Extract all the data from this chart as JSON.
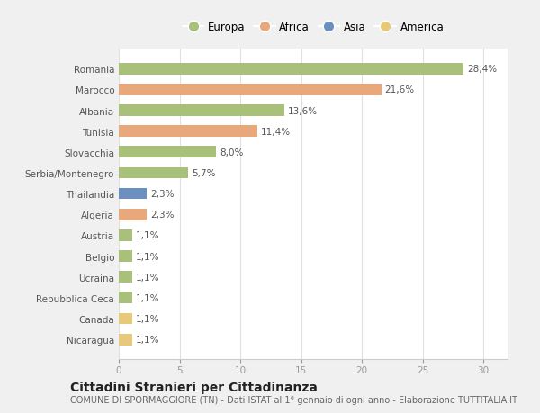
{
  "categories": [
    "Romania",
    "Marocco",
    "Albania",
    "Tunisia",
    "Slovacchia",
    "Serbia/Montenegro",
    "Thailandia",
    "Algeria",
    "Austria",
    "Belgio",
    "Ucraina",
    "Repubblica Ceca",
    "Canada",
    "Nicaragua"
  ],
  "values": [
    28.4,
    21.6,
    13.6,
    11.4,
    8.0,
    5.7,
    2.3,
    2.3,
    1.1,
    1.1,
    1.1,
    1.1,
    1.1,
    1.1
  ],
  "labels": [
    "28,4%",
    "21,6%",
    "13,6%",
    "11,4%",
    "8,0%",
    "5,7%",
    "2,3%",
    "2,3%",
    "1,1%",
    "1,1%",
    "1,1%",
    "1,1%",
    "1,1%",
    "1,1%"
  ],
  "continents": [
    "Europa",
    "Africa",
    "Europa",
    "Africa",
    "Europa",
    "Europa",
    "Asia",
    "Africa",
    "Europa",
    "Europa",
    "Europa",
    "Europa",
    "America",
    "America"
  ],
  "continent_colors": {
    "Europa": "#a8c07a",
    "Africa": "#e8a87c",
    "Asia": "#6b8fbf",
    "America": "#e8c97a"
  },
  "legend_order": [
    "Europa",
    "Africa",
    "Asia",
    "America"
  ],
  "xlim": [
    0,
    32
  ],
  "xticks": [
    0,
    5,
    10,
    15,
    20,
    25,
    30
  ],
  "title": "Cittadini Stranieri per Cittadinanza",
  "subtitle": "COMUNE DI SPORMAGGIORE (TN) - Dati ISTAT al 1° gennaio di ogni anno - Elaborazione TUTTITALIA.IT",
  "bg_color": "#f0f0f0",
  "plot_bg_color": "#ffffff",
  "bar_height": 0.55,
  "title_fontsize": 10,
  "subtitle_fontsize": 7,
  "label_fontsize": 7.5,
  "ytick_fontsize": 7.5,
  "xtick_fontsize": 7.5,
  "legend_fontsize": 8.5
}
